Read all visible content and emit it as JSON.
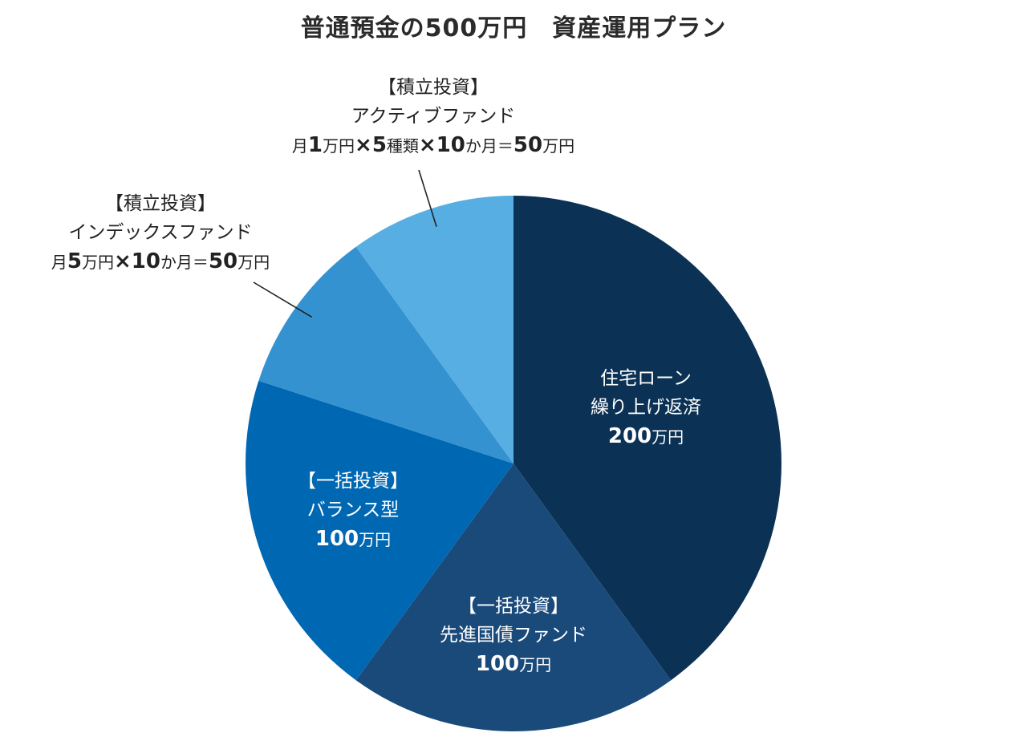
{
  "title": "普通預金の500万円　資産運用プラン",
  "chart_data": {
    "type": "pie",
    "title": "普通預金の500万円　資産運用プラン",
    "unit": "万円",
    "start_angle_deg": 0,
    "direction": "clockwise",
    "slices": [
      {
        "key": "housing",
        "value": 200,
        "color": "#0b3154",
        "lines": [
          "住宅ローン",
          "繰り上げ返済"
        ],
        "amount": "200",
        "unit": "万円"
      },
      {
        "key": "bond",
        "value": 100,
        "color": "#1a4a7a",
        "lines": [
          "【一括投資】",
          "先進国債ファンド"
        ],
        "amount": "100",
        "unit": "万円"
      },
      {
        "key": "balance",
        "value": 100,
        "color": "#0068b3",
        "lines": [
          "【一括投資】",
          "バランス型"
        ],
        "amount": "100",
        "unit": "万円"
      },
      {
        "key": "index",
        "value": 50,
        "color": "#3592d1",
        "lines": [
          "【積立投資】",
          "インデックスファンド"
        ],
        "formula": {
          "a": "月",
          "b": "5",
          "c": "万円",
          "d": "×",
          "e": "10",
          "f": "か月＝",
          "g": "50",
          "h": "万円"
        }
      },
      {
        "key": "active",
        "value": 50,
        "color": "#57aee2",
        "lines": [
          "【積立投資】",
          "アクティブファンド"
        ],
        "formula": {
          "a": "月",
          "b": "1",
          "c": "万円",
          "d": "×",
          "e": "5",
          "f": "種類",
          "g": "×",
          "h": "10",
          "i": "か月＝",
          "j": "50",
          "k": "万円"
        }
      }
    ]
  }
}
